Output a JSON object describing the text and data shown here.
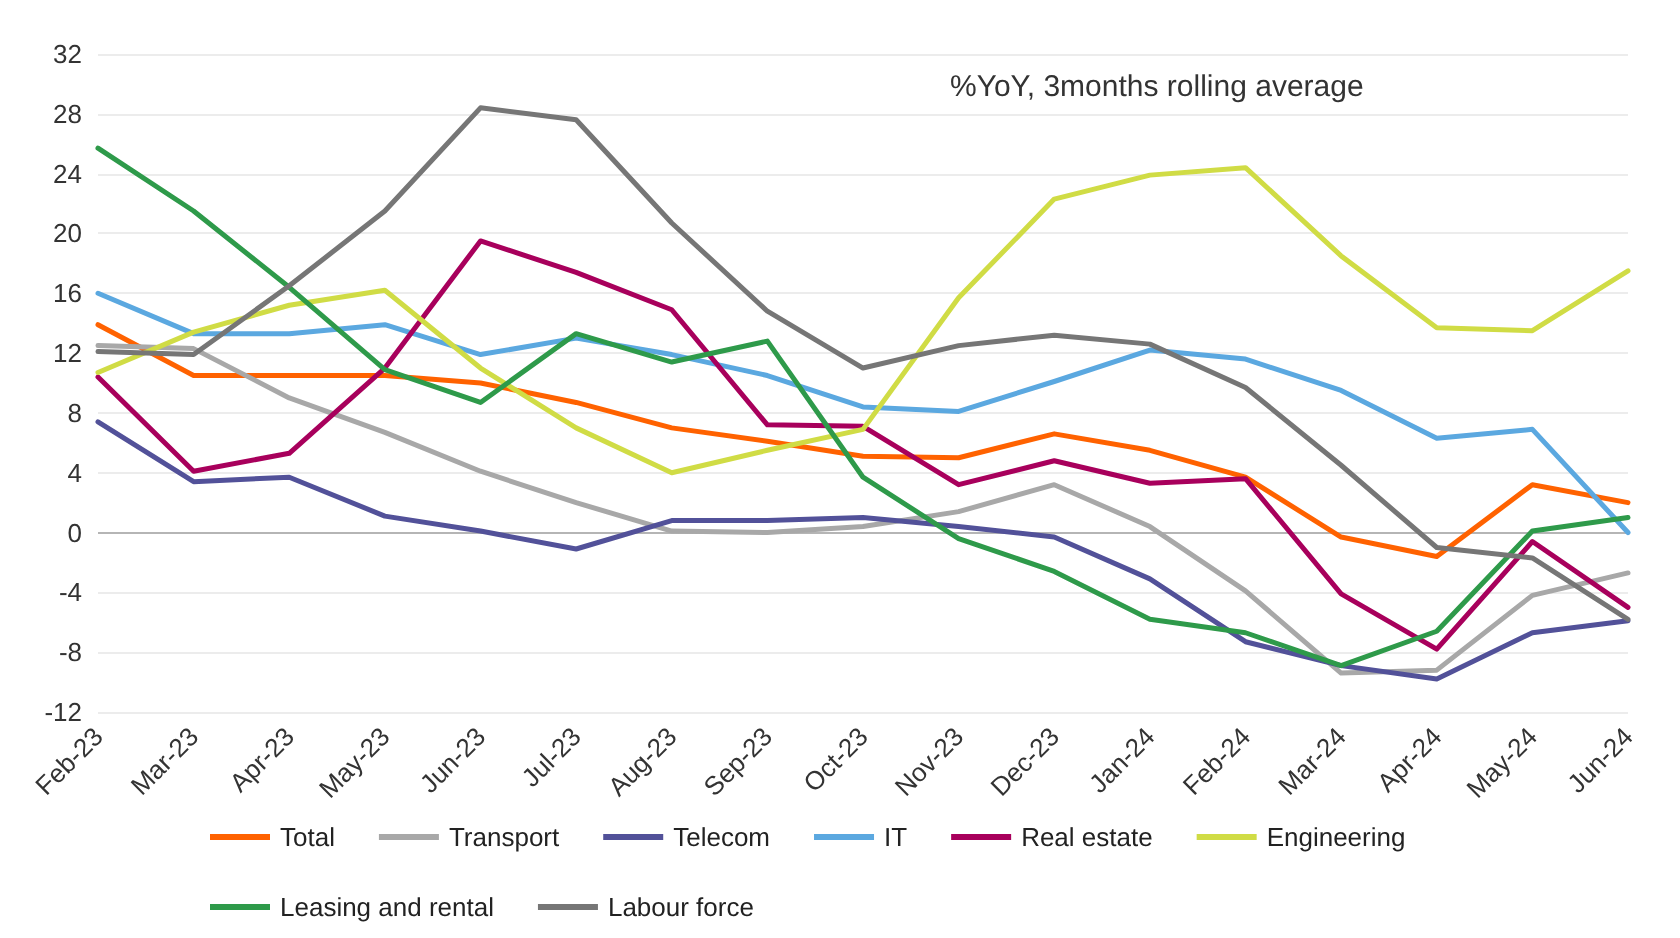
{
  "chart_data": {
    "type": "line",
    "annotations": [
      "%YoY, 3months rolling average"
    ],
    "categories": [
      "Feb-23",
      "Mar-23",
      "Apr-23",
      "May-23",
      "Jun-23",
      "Jul-23",
      "Aug-23",
      "Sep-23",
      "Oct-23",
      "Nov-23",
      "Dec-23",
      "Jan-24",
      "Feb-24",
      "Mar-24",
      "Apr-24",
      "May-24",
      "Jun-24"
    ],
    "ylim": [
      -12,
      32
    ],
    "yticks": [
      -12,
      -8,
      -4,
      0,
      4,
      8,
      12,
      16,
      20,
      24,
      28,
      32
    ],
    "grid": "y",
    "legend": "bottom",
    "marker": "none",
    "line_style": "solid",
    "series": [
      {
        "name": "Total",
        "color": "#ff6200",
        "values": [
          13.9,
          10.5,
          10.5,
          10.5,
          10,
          8.7,
          7,
          6.1,
          5.1,
          5,
          6.6,
          5.5,
          3.7,
          -0.3,
          -1.6,
          3.2,
          2
        ]
      },
      {
        "name": "Transport",
        "color": "#a8a8a8",
        "values": [
          12.5,
          12.3,
          9,
          6.7,
          4.1,
          2,
          0.1,
          0,
          0.4,
          1.4,
          3.2,
          0.4,
          -3.9,
          -9.4,
          -9.2,
          -4.2,
          -2.7
        ]
      },
      {
        "name": "Telecom",
        "color": "#525199",
        "values": [
          7.4,
          3.4,
          3.7,
          1.1,
          0.1,
          -1.1,
          0.8,
          0.8,
          1,
          0.4,
          -0.3,
          -3.1,
          -7.3,
          -8.9,
          -9.8,
          -6.7,
          -5.9
        ]
      },
      {
        "name": "IT",
        "color": "#5ba8e0",
        "values": [
          16,
          13.3,
          13.3,
          13.9,
          11.9,
          13,
          11.9,
          10.5,
          8.4,
          8.1,
          10.1,
          12.2,
          11.6,
          9.5,
          6.3,
          6.9,
          0
        ]
      },
      {
        "name": "Real estate",
        "color": "#a8005c",
        "values": [
          10.4,
          4.1,
          5.3,
          11,
          19.5,
          17.4,
          14.9,
          7.2,
          7.1,
          3.2,
          4.8,
          3.3,
          3.6,
          -4.1,
          -7.8,
          -0.6,
          -5
        ]
      },
      {
        "name": "Engineering",
        "color": "#d0dc45",
        "values": [
          10.7,
          13.4,
          15.2,
          16.2,
          11,
          7,
          4,
          5.5,
          6.9,
          15.7,
          22.3,
          23.9,
          24.4,
          18.5,
          13.7,
          13.5,
          17.5
        ]
      },
      {
        "name": "Leasing and rental",
        "color": "#2e9a4a",
        "values": [
          25.7,
          21.5,
          16.4,
          10.9,
          8.7,
          13.3,
          11.4,
          12.8,
          3.7,
          -0.4,
          -2.6,
          -5.8,
          -6.7,
          -8.9,
          -6.6,
          0.1,
          1
        ]
      },
      {
        "name": "Labour force",
        "color": "#767676",
        "values": [
          12.1,
          11.9,
          16.5,
          21.5,
          28.4,
          27.6,
          20.7,
          14.8,
          11,
          12.5,
          13.2,
          12.6,
          9.7,
          4.5,
          -1,
          -1.7,
          -5.8
        ]
      }
    ]
  }
}
